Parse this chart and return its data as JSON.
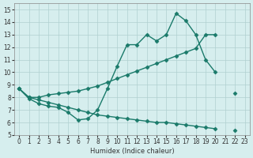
{
  "bg_color": "#d6eeee",
  "grid_color": "#b0d0d0",
  "line_color": "#1a7a6a",
  "xlabel": "Humidex (Indice chaleur)",
  "xlim": [
    -0.5,
    23.5
  ],
  "ylim": [
    5,
    15.5
  ],
  "yticks": [
    5,
    6,
    7,
    8,
    9,
    10,
    11,
    12,
    13,
    14,
    15
  ],
  "xticks": [
    0,
    1,
    2,
    3,
    4,
    5,
    6,
    7,
    8,
    9,
    10,
    11,
    12,
    13,
    14,
    15,
    16,
    17,
    18,
    19,
    20,
    21,
    22,
    23
  ],
  "line1_x": [
    0,
    1,
    2,
    3,
    4,
    5,
    6,
    7,
    8,
    9,
    10,
    11,
    12,
    13,
    14,
    15,
    16,
    17,
    18,
    19,
    20,
    21,
    22,
    23
  ],
  "line1_y": [
    8.7,
    7.9,
    7.5,
    7.3,
    7.2,
    6.8,
    6.2,
    6.3,
    7.0,
    8.7,
    10.5,
    12.2,
    12.2,
    13.0,
    12.5,
    13.0,
    14.7,
    14.1,
    13.0,
    11.0,
    10.0,
    null,
    8.3,
    null
  ],
  "line2_x": [
    0,
    1,
    2,
    3,
    4,
    5,
    6,
    7,
    8,
    9,
    10,
    11,
    12,
    13,
    14,
    15,
    16,
    17,
    18,
    19,
    20,
    21,
    22,
    23
  ],
  "line2_y": [
    8.7,
    8.0,
    8.0,
    8.2,
    8.3,
    8.4,
    8.5,
    8.7,
    8.9,
    9.2,
    9.5,
    9.8,
    10.1,
    10.4,
    10.7,
    11.0,
    11.3,
    11.6,
    11.9,
    13.0,
    13.0,
    null,
    null,
    null
  ],
  "line3_x": [
    0,
    1,
    2,
    3,
    4,
    5,
    6,
    7,
    8,
    9,
    10,
    11,
    12,
    13,
    14,
    15,
    16,
    17,
    18,
    19,
    20,
    21,
    22,
    23
  ],
  "line3_y": [
    8.7,
    8.0,
    7.8,
    7.6,
    7.4,
    7.2,
    7.0,
    6.8,
    6.6,
    6.5,
    6.4,
    6.3,
    6.2,
    6.1,
    6.0,
    6.0,
    5.9,
    5.8,
    5.7,
    5.6,
    5.5,
    null,
    5.4,
    null
  ]
}
